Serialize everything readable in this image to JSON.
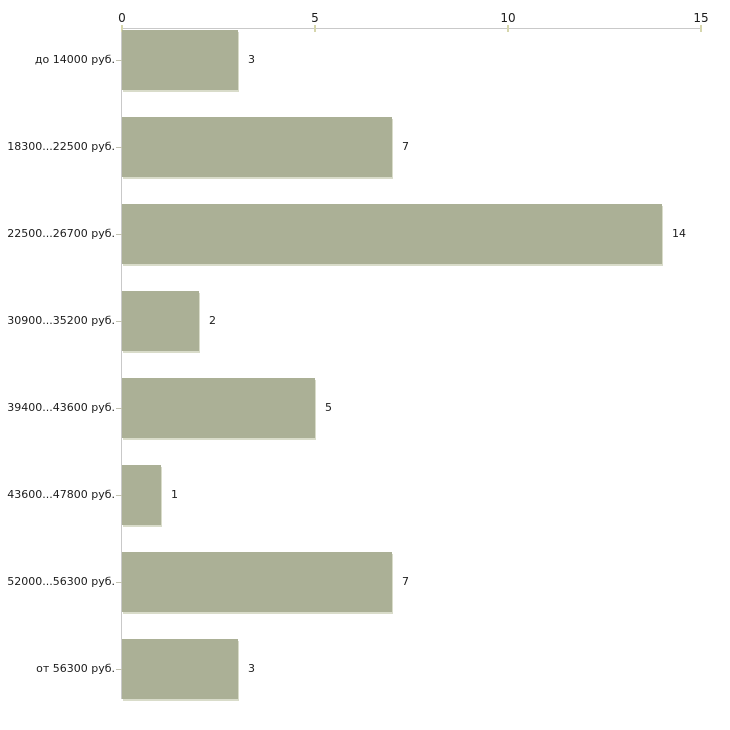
{
  "chart_data": {
    "type": "bar",
    "orientation": "horizontal",
    "title": "",
    "xlabel": "",
    "ylabel": "",
    "categories": [
      "до 14000 руб.",
      "18300...22500 руб.",
      "22500...26700 руб.",
      "30900...35200 руб.",
      "39400...43600 руб.",
      "43600...47800 руб.",
      "52000...56300 руб.",
      "от 56300 руб."
    ],
    "values": [
      3,
      7,
      14,
      2,
      5,
      1,
      7,
      3
    ],
    "value_labels": [
      "3",
      "7",
      "14",
      "2",
      "5",
      "1",
      "7",
      "3"
    ],
    "xlim": [
      0,
      15
    ],
    "xticks": [
      "0",
      "5",
      "10",
      "15"
    ],
    "xtick_values": [
      0,
      5,
      10,
      15
    ],
    "grid": false,
    "legend": "none",
    "colors": {
      "bar": "#abb096",
      "bar_shadow": "#d9dcca",
      "axis": "#c9c9c9",
      "axis_tick": "#d6d6ac",
      "category_tick": "#c3c3b2",
      "text": "#1c1c1c",
      "background": "#ffffff"
    }
  }
}
